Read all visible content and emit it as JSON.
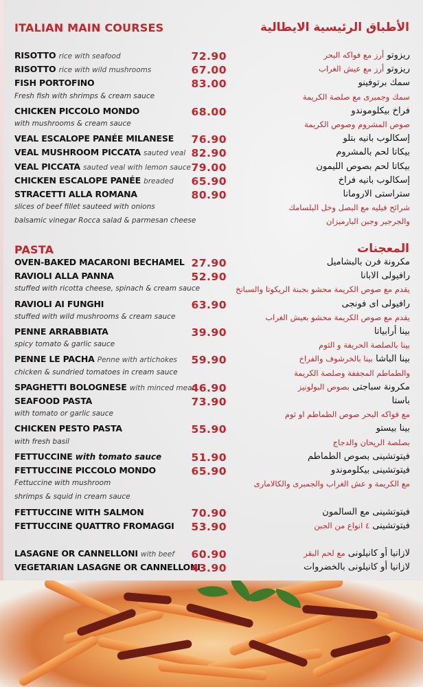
{
  "sections": [
    {
      "title": "ITALIAN MAIN COURSES",
      "title_ar": "الأطباق الرئيسية الايطالية",
      "rows": [
        {
          "name": "RISOTTO",
          "note": "rice with seafood",
          "price": "72.90",
          "ar": "ريزوتو",
          "ar_note": "أرز مع فواكه البحر"
        },
        {
          "name": "RISOTTO",
          "note": "rice with wild mushrooms",
          "price": "67.00",
          "ar": "ريزوتو",
          "ar_note": "أرز مع عيش الغراب"
        },
        {
          "name": "FISH PORTOFINO",
          "price": "83.00",
          "ar": "سمك برتوفينو"
        },
        {
          "desc": "Fresh fish with shrimps & cream sauce",
          "ar_desc": "سمك وجمبرى مع صلصة الكريمة"
        },
        {
          "name": "CHICKEN PICCOLO MONDO",
          "price": "68.00",
          "ar": "فراخ بيكلوموندو"
        },
        {
          "desc": "with mushrooms & cream sauce",
          "ar_desc": "صوص المشروم وصوص الكريمة"
        },
        {
          "name": "VEAL ESCALOPE PANÉE MILANESE",
          "price": "76.90",
          "ar": "إسكالوب بانيه بتلو"
        },
        {
          "name": "VEAL MUSHROOM PICCATA",
          "note": "sauted veal",
          "price": "82.90",
          "ar": "بيكاتا لحم بالمشروم"
        },
        {
          "name": "VEAL PICCATA",
          "note": "sauted veal with lemon sauce",
          "price": "79.00",
          "ar": "بيكاتا لحم بصوص الليمون"
        },
        {
          "name": "CHICKEN ESCALOPE PANÉE",
          "note": "breaded",
          "price": "65.90",
          "ar": "إسكالوب بانيه فراخ"
        },
        {
          "name": "STRACETTI ALLA ROMANA",
          "price": "80.90",
          "ar": "ستراستى الارومانا"
        },
        {
          "desc": "slices of beef fillet sauteed with onions",
          "ar_desc": "شرائح فيليه مع البصل وخل البلسامك"
        },
        {
          "desc": "balsamic vinegar Rocca salad & parmesan cheese",
          "ar_desc": "والجرجير وجبن البارميزان"
        }
      ]
    },
    {
      "title": "PASTA",
      "title_ar": "المعجنات",
      "rows": [
        {
          "name": "OVEN-BAKED MACARONI BECHAMEL",
          "price": "27.90",
          "ar": "مكرونة فرن بالبشاميل"
        },
        {
          "name": "RAVIOLI ALLA PANNA",
          "price": "52.90",
          "ar": "رافيولى الابانا"
        },
        {
          "desc": "stuffed with ricotta cheese, spinach & cream sauce",
          "ar_desc": "يقدم مع صوص الكريمة محشو بجبنة الريكوتا والسبانخ"
        },
        {
          "name": "RAVIOLI AI FUNGHI",
          "price": "63.90",
          "ar": "رافيولى اى فونجى"
        },
        {
          "desc": "stuffed with wild mushrooms & cream sauce",
          "ar_desc": "يقدم مع صوص الكريمة محشو بعيش الغراب"
        },
        {
          "name": "PENNE ARRABBIATA",
          "price": "39.90",
          "ar": "بينا أرابياتا"
        },
        {
          "desc": "spicy tomato & garlic sauce",
          "ar_desc": "بينا بالصلصة الحريفة و الثوم"
        },
        {
          "name": "PENNE LE PACHA",
          "note": "Penne with artichokes",
          "price": "59.90",
          "ar": "بينا الباشا",
          "ar_note": "بينا بالخرشوف والفراخ"
        },
        {
          "desc": "chicken & sundried tomatoes in cream sauce",
          "ar_desc": "والطماطم المجففة وصلصة الكريمة"
        },
        {
          "name": "SPAGHETTI BOLOGNESE",
          "note": "with minced meat",
          "price": "46.90",
          "ar": "مكرونة سباجتى",
          "ar_note": "بصوص البولونيز"
        },
        {
          "name": "SEAFOOD PASTA",
          "price": "73.90",
          "ar": "باستا"
        },
        {
          "desc": "with tomato or garlic sauce",
          "ar_desc": "مع فواكه البحر صوص الطماطم او ثوم"
        },
        {
          "name": "CHICKEN PESTO PASTA",
          "price": "55.90",
          "ar": "بينا بيستو"
        },
        {
          "desc": "with fresh basil",
          "ar_desc": "بصلصة الريحان والدجاج"
        },
        {
          "name": "FETTUCCINE",
          "note": "with tomato sauce",
          "note_bold": true,
          "price": "51.90",
          "ar": "فيتوتشينى بصوص الطماطم"
        },
        {
          "name": "FETTUCCINE PICCOLO MONDO",
          "price": "65.90",
          "ar": "فيتوتشينى بيكلوموندو"
        },
        {
          "desc": "Fettuccine with mushroom",
          "ar_desc": "مع الكريمة و عش الغراب والجمبرى والكالامارى"
        },
        {
          "desc": " shrimps & squid in cream sauce"
        },
        {
          "name": "FETTUCCINE WITH SALMON",
          "price": "70.90",
          "ar": "فيتوتشينى مع السالمون"
        },
        {
          "name": "FETTUCCINE QUATTRO FROMAGGI",
          "price": "53.90",
          "ar": "فيتوتشينى",
          "ar_note": "٤ انواع من الجبن"
        },
        {},
        {
          "name": "LASAGNE OR CANNELLONI",
          "note": "with beef",
          "price": "60.90",
          "ar": "لازانيا أو كانيلونى",
          "ar_note": "مع لحم البقر"
        },
        {
          "name": "VEGETARIAN LASAGNE OR CANNELLONI",
          "price": "43.90",
          "ar": "لازانيا أو كانيلونى بالخضروات"
        }
      ]
    }
  ],
  "colors": {
    "accent": "#c0272d",
    "text": "#111111",
    "background": "#eaeaea"
  },
  "photo": {
    "subject": "penne pasta with sundried tomatoes and basil"
  }
}
